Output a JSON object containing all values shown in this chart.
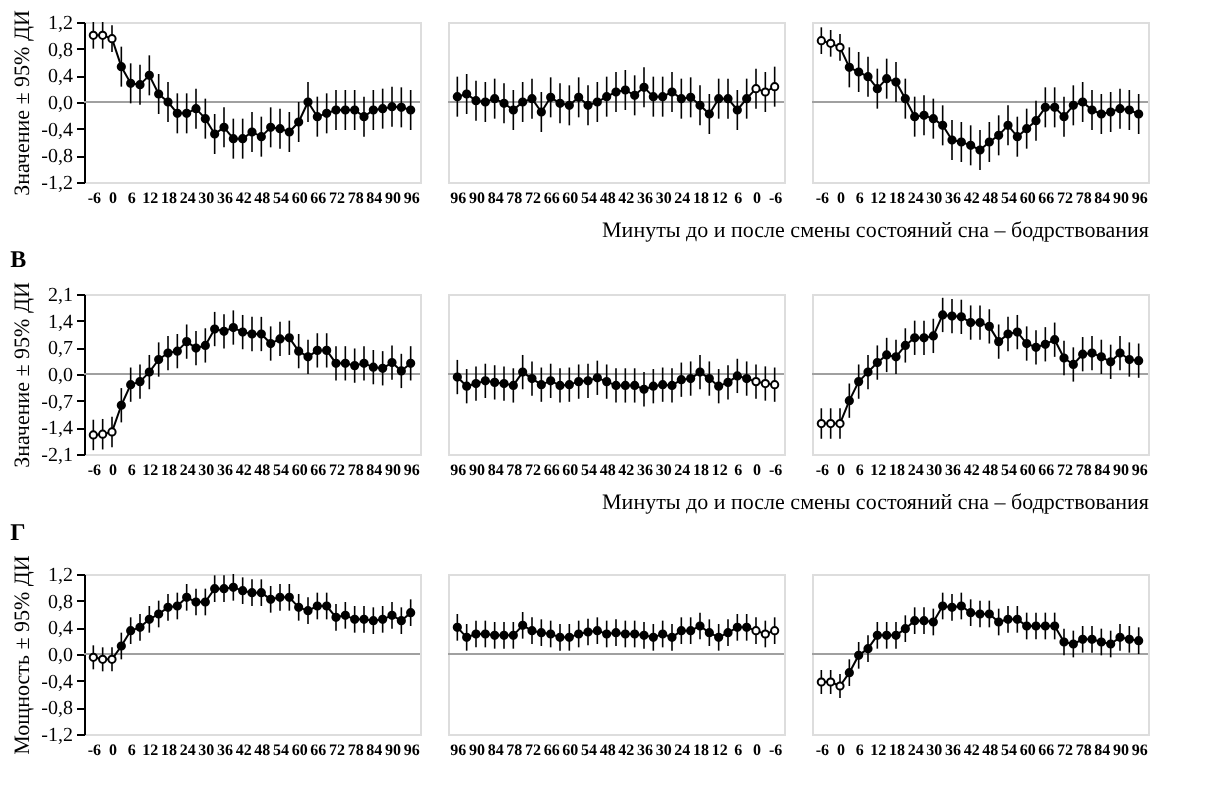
{
  "chart_data": [
    {
      "type": "line",
      "ylabel": "Значение ± 95% ДИ",
      "marker": "circle",
      "line_style": "solid",
      "xlim": [
        -9,
        99
      ],
      "xticks": [
        -6,
        0,
        6,
        12,
        18,
        24,
        30,
        36,
        42,
        48,
        54,
        60,
        66,
        72,
        78,
        84,
        90,
        96
      ],
      "ylim": [
        -1.2,
        1.2
      ],
      "yticks": [
        {
          "value": -1.2,
          "label": "-1,2"
        },
        {
          "value": -0.8,
          "label": "-0,8"
        },
        {
          "value": -0.4,
          "label": "-0,4"
        },
        {
          "value": 0,
          "label": "0,0"
        },
        {
          "value": 0.4,
          "label": "0,4"
        },
        {
          "value": 0.8,
          "label": "0,8"
        },
        {
          "value": 1.2,
          "label": "1,2"
        }
      ],
      "ref_lines": [
        {
          "axis": "y",
          "value": 0,
          "color": "#a0a0a0"
        }
      ],
      "series": [
        {
          "colors": [
            "#ffffff",
            "#ffffff",
            "#ffffff",
            "#000000",
            "#000000",
            "#000000",
            "#000000",
            "#000000",
            "#000000",
            "#000000",
            "#000000",
            "#000000",
            "#000000",
            "#000000",
            "#000000",
            "#000000",
            "#000000",
            "#000000",
            "#000000",
            "#000000",
            "#000000",
            "#000000",
            "#000000",
            "#000000",
            "#000000",
            "#000000",
            "#000000",
            "#000000",
            "#000000",
            "#000000",
            "#000000",
            "#000000",
            "#000000",
            "#000000",
            "#000000"
          ],
          "x": [
            -6,
            -3,
            0,
            3,
            6,
            9,
            12,
            15,
            18,
            21,
            24,
            27,
            30,
            33,
            36,
            39,
            42,
            45,
            48,
            51,
            54,
            57,
            60,
            63,
            66,
            69,
            72,
            75,
            78,
            81,
            84,
            87,
            90,
            93,
            96
          ],
          "values": [
            1.0,
            1.0,
            0.95,
            0.53,
            0.28,
            0.26,
            0.4,
            0.12,
            0.0,
            -0.17,
            -0.17,
            -0.1,
            -0.25,
            -0.48,
            -0.38,
            -0.55,
            -0.55,
            -0.45,
            -0.52,
            -0.38,
            -0.4,
            -0.45,
            -0.3,
            0.0,
            -0.22,
            -0.17,
            -0.12,
            -0.12,
            -0.12,
            -0.22,
            -0.12,
            -0.1,
            -0.07,
            -0.08,
            -0.12
          ],
          "errors": [
            0.2,
            0.2,
            0.2,
            0.3,
            0.3,
            0.3,
            0.3,
            0.3,
            0.3,
            0.3,
            0.3,
            0.3,
            0.3,
            0.3,
            0.3,
            0.3,
            0.3,
            0.3,
            0.3,
            0.3,
            0.3,
            0.3,
            0.3,
            0.3,
            0.3,
            0.3,
            0.3,
            0.3,
            0.3,
            0.3,
            0.3,
            0.3,
            0.3,
            0.3,
            0.3
          ]
        }
      ]
    },
    {
      "type": "line",
      "tick_labels": "x",
      "marker": "circle",
      "line_style": "solid",
      "xlim": [
        99,
        -9
      ],
      "xticks": [
        96,
        90,
        84,
        78,
        72,
        66,
        60,
        54,
        48,
        42,
        36,
        30,
        24,
        18,
        12,
        6,
        0,
        -6
      ],
      "ylim": [
        -1.2,
        1.2
      ],
      "ref_lines": [
        {
          "axis": "y",
          "value": 0,
          "color": "#a0a0a0"
        }
      ],
      "series": [
        {
          "colors": [
            "#000000",
            "#000000",
            "#000000",
            "#000000",
            "#000000",
            "#000000",
            "#000000",
            "#000000",
            "#000000",
            "#000000",
            "#000000",
            "#000000",
            "#000000",
            "#000000",
            "#000000",
            "#000000",
            "#000000",
            "#000000",
            "#000000",
            "#000000",
            "#000000",
            "#000000",
            "#000000",
            "#000000",
            "#000000",
            "#000000",
            "#000000",
            "#000000",
            "#000000",
            "#000000",
            "#000000",
            "#000000",
            "#ffffff",
            "#ffffff",
            "#ffffff"
          ],
          "x": [
            96,
            93,
            90,
            87,
            84,
            81,
            78,
            75,
            72,
            69,
            66,
            63,
            60,
            57,
            54,
            51,
            48,
            45,
            42,
            39,
            36,
            33,
            30,
            27,
            24,
            21,
            18,
            15,
            12,
            9,
            6,
            3,
            0,
            -3,
            -6
          ],
          "values": [
            0.08,
            0.12,
            0.02,
            0.0,
            0.05,
            -0.02,
            -0.12,
            0.0,
            0.05,
            -0.15,
            0.07,
            -0.02,
            -0.05,
            0.07,
            -0.05,
            0.0,
            0.08,
            0.15,
            0.18,
            0.1,
            0.22,
            0.08,
            0.08,
            0.15,
            0.05,
            0.07,
            -0.05,
            -0.18,
            0.05,
            0.05,
            -0.12,
            0.05,
            0.2,
            0.15,
            0.23
          ],
          "errors": [
            0.3,
            0.3,
            0.3,
            0.3,
            0.3,
            0.3,
            0.3,
            0.3,
            0.3,
            0.3,
            0.3,
            0.3,
            0.3,
            0.3,
            0.3,
            0.3,
            0.3,
            0.3,
            0.3,
            0.3,
            0.3,
            0.3,
            0.3,
            0.3,
            0.3,
            0.3,
            0.3,
            0.3,
            0.3,
            0.3,
            0.3,
            0.3,
            0.3,
            0.3,
            0.3
          ]
        }
      ]
    },
    {
      "type": "line",
      "tick_labels": "x",
      "xlabel": "Минуты до и после смены состояний сна – бодрствования",
      "marker": "circle",
      "line_style": "solid",
      "xlim": [
        -9,
        99
      ],
      "xticks": [
        -6,
        0,
        6,
        12,
        18,
        24,
        30,
        36,
        42,
        48,
        54,
        60,
        66,
        72,
        78,
        84,
        90,
        96
      ],
      "ylim": [
        -1.2,
        1.2
      ],
      "ref_lines": [
        {
          "axis": "y",
          "value": 0,
          "color": "#a0a0a0"
        }
      ],
      "series": [
        {
          "colors": [
            "#ffffff",
            "#ffffff",
            "#ffffff",
            "#000000",
            "#000000",
            "#000000",
            "#000000",
            "#000000",
            "#000000",
            "#000000",
            "#000000",
            "#000000",
            "#000000",
            "#000000",
            "#000000",
            "#000000",
            "#000000",
            "#000000",
            "#000000",
            "#000000",
            "#000000",
            "#000000",
            "#000000",
            "#000000",
            "#000000",
            "#000000",
            "#000000",
            "#000000",
            "#000000",
            "#000000",
            "#000000",
            "#000000",
            "#000000",
            "#000000",
            "#000000"
          ],
          "x": [
            -6,
            -3,
            0,
            3,
            6,
            9,
            12,
            15,
            18,
            21,
            24,
            27,
            30,
            33,
            36,
            39,
            42,
            45,
            48,
            51,
            54,
            57,
            60,
            63,
            66,
            69,
            72,
            75,
            78,
            81,
            84,
            87,
            90,
            93,
            96
          ],
          "values": [
            0.92,
            0.88,
            0.82,
            0.52,
            0.45,
            0.38,
            0.2,
            0.35,
            0.3,
            0.05,
            -0.22,
            -0.2,
            -0.25,
            -0.35,
            -0.57,
            -0.6,
            -0.65,
            -0.72,
            -0.6,
            -0.5,
            -0.35,
            -0.52,
            -0.4,
            -0.28,
            -0.08,
            -0.08,
            -0.22,
            -0.05,
            0.0,
            -0.12,
            -0.18,
            -0.15,
            -0.1,
            -0.12,
            -0.18
          ],
          "errors": [
            0.2,
            0.2,
            0.2,
            0.3,
            0.3,
            0.3,
            0.3,
            0.3,
            0.3,
            0.3,
            0.3,
            0.3,
            0.3,
            0.3,
            0.3,
            0.3,
            0.3,
            0.3,
            0.3,
            0.3,
            0.3,
            0.3,
            0.3,
            0.3,
            0.3,
            0.3,
            0.3,
            0.3,
            0.3,
            0.3,
            0.3,
            0.3,
            0.3,
            0.3,
            0.3
          ]
        }
      ]
    },
    {
      "type": "line",
      "title": "В",
      "ylabel": "Значение ± 95% ДИ",
      "marker": "circle",
      "line_style": "solid",
      "xlim": [
        -9,
        99
      ],
      "xticks": [
        -6,
        0,
        6,
        12,
        18,
        24,
        30,
        36,
        42,
        48,
        54,
        60,
        66,
        72,
        78,
        84,
        90,
        96
      ],
      "ylim": [
        -2.1,
        2.1
      ],
      "yticks": [
        {
          "value": -2.1,
          "label": "-2,1"
        },
        {
          "value": -1.4,
          "label": "-1,4"
        },
        {
          "value": -0.7,
          "label": "-0,7"
        },
        {
          "value": 0,
          "label": "0,0"
        },
        {
          "value": 0.7,
          "label": "0,7"
        },
        {
          "value": 1.4,
          "label": "1,4"
        },
        {
          "value": 2.1,
          "label": "2,1"
        }
      ],
      "ref_lines": [
        {
          "axis": "y",
          "value": 0,
          "color": "#a0a0a0"
        }
      ],
      "series": [
        {
          "colors": [
            "#ffffff",
            "#ffffff",
            "#ffffff",
            "#000000",
            "#000000",
            "#000000",
            "#000000",
            "#000000",
            "#000000",
            "#000000",
            "#000000",
            "#000000",
            "#000000",
            "#000000",
            "#000000",
            "#000000",
            "#000000",
            "#000000",
            "#000000",
            "#000000",
            "#000000",
            "#000000",
            "#000000",
            "#000000",
            "#000000",
            "#000000",
            "#000000",
            "#000000",
            "#000000",
            "#000000",
            "#000000",
            "#000000",
            "#000000",
            "#000000",
            "#000000"
          ],
          "x": [
            -6,
            -3,
            0,
            3,
            6,
            9,
            12,
            15,
            18,
            21,
            24,
            27,
            30,
            33,
            36,
            39,
            42,
            45,
            48,
            51,
            54,
            57,
            60,
            63,
            66,
            69,
            72,
            75,
            78,
            81,
            84,
            87,
            90,
            93,
            96
          ],
          "values": [
            -1.6,
            -1.58,
            -1.52,
            -0.82,
            -0.28,
            -0.2,
            0.05,
            0.38,
            0.55,
            0.6,
            0.85,
            0.68,
            0.75,
            1.18,
            1.12,
            1.22,
            1.1,
            1.05,
            1.05,
            0.8,
            0.92,
            0.95,
            0.6,
            0.45,
            0.62,
            0.62,
            0.28,
            0.28,
            0.22,
            0.28,
            0.18,
            0.15,
            0.3,
            0.08,
            0.28
          ],
          "errors": [
            0.4,
            0.4,
            0.4,
            0.45,
            0.45,
            0.45,
            0.45,
            0.45,
            0.45,
            0.45,
            0.45,
            0.45,
            0.45,
            0.45,
            0.45,
            0.45,
            0.45,
            0.45,
            0.45,
            0.45,
            0.45,
            0.45,
            0.45,
            0.45,
            0.45,
            0.45,
            0.45,
            0.45,
            0.45,
            0.45,
            0.45,
            0.45,
            0.45,
            0.45,
            0.45
          ]
        }
      ]
    },
    {
      "type": "line",
      "tick_labels": "x",
      "marker": "circle",
      "line_style": "solid",
      "xlim": [
        99,
        -9
      ],
      "xticks": [
        96,
        90,
        84,
        78,
        72,
        66,
        60,
        54,
        48,
        42,
        36,
        30,
        24,
        18,
        12,
        6,
        0,
        -6
      ],
      "ylim": [
        -2.1,
        2.1
      ],
      "ref_lines": [
        {
          "axis": "y",
          "value": 0,
          "color": "#a0a0a0"
        }
      ],
      "series": [
        {
          "colors": [
            "#000000",
            "#000000",
            "#000000",
            "#000000",
            "#000000",
            "#000000",
            "#000000",
            "#000000",
            "#000000",
            "#000000",
            "#000000",
            "#000000",
            "#000000",
            "#000000",
            "#000000",
            "#000000",
            "#000000",
            "#000000",
            "#000000",
            "#000000",
            "#000000",
            "#000000",
            "#000000",
            "#000000",
            "#000000",
            "#000000",
            "#000000",
            "#000000",
            "#000000",
            "#000000",
            "#000000",
            "#000000",
            "#ffffff",
            "#ffffff",
            "#ffffff"
          ],
          "x": [
            96,
            93,
            90,
            87,
            84,
            81,
            78,
            75,
            72,
            69,
            66,
            63,
            60,
            57,
            54,
            51,
            48,
            45,
            42,
            39,
            36,
            33,
            30,
            27,
            24,
            21,
            18,
            15,
            12,
            9,
            6,
            3,
            0,
            -3,
            -6
          ],
          "values": [
            -0.08,
            -0.32,
            -0.25,
            -0.18,
            -0.22,
            -0.25,
            -0.3,
            0.05,
            -0.12,
            -0.28,
            -0.18,
            -0.3,
            -0.28,
            -0.2,
            -0.18,
            -0.1,
            -0.2,
            -0.3,
            -0.3,
            -0.3,
            -0.4,
            -0.32,
            -0.28,
            -0.3,
            -0.15,
            -0.12,
            0.05,
            -0.12,
            -0.32,
            -0.22,
            -0.05,
            -0.12,
            -0.2,
            -0.25,
            -0.28
          ],
          "errors": [
            0.45,
            0.45,
            0.45,
            0.45,
            0.45,
            0.45,
            0.45,
            0.45,
            0.45,
            0.45,
            0.45,
            0.45,
            0.45,
            0.45,
            0.45,
            0.45,
            0.45,
            0.45,
            0.45,
            0.45,
            0.45,
            0.45,
            0.45,
            0.45,
            0.45,
            0.45,
            0.45,
            0.45,
            0.45,
            0.45,
            0.45,
            0.45,
            0.45,
            0.45,
            0.45
          ]
        }
      ]
    },
    {
      "type": "line",
      "tick_labels": "x",
      "xlabel": "Минуты до и после смены состояний сна – бодрствования",
      "marker": "circle",
      "line_style": "solid",
      "xlim": [
        -9,
        99
      ],
      "xticks": [
        -6,
        0,
        6,
        12,
        18,
        24,
        30,
        36,
        42,
        48,
        54,
        60,
        66,
        72,
        78,
        84,
        90,
        96
      ],
      "ylim": [
        -2.1,
        2.1
      ],
      "ref_lines": [
        {
          "axis": "y",
          "value": 0,
          "color": "#a0a0a0"
        }
      ],
      "series": [
        {
          "colors": [
            "#ffffff",
            "#ffffff",
            "#ffffff",
            "#000000",
            "#000000",
            "#000000",
            "#000000",
            "#000000",
            "#000000",
            "#000000",
            "#000000",
            "#000000",
            "#000000",
            "#000000",
            "#000000",
            "#000000",
            "#000000",
            "#000000",
            "#000000",
            "#000000",
            "#000000",
            "#000000",
            "#000000",
            "#000000",
            "#000000",
            "#000000",
            "#000000",
            "#000000",
            "#000000",
            "#000000",
            "#000000",
            "#000000",
            "#000000",
            "#000000",
            "#000000"
          ],
          "x": [
            -6,
            -3,
            0,
            3,
            6,
            9,
            12,
            15,
            18,
            21,
            24,
            27,
            30,
            33,
            36,
            39,
            42,
            45,
            48,
            51,
            54,
            57,
            60,
            63,
            66,
            69,
            72,
            75,
            78,
            81,
            84,
            87,
            90,
            93,
            96
          ],
          "values": [
            -1.3,
            -1.3,
            -1.3,
            -0.7,
            -0.2,
            0.05,
            0.3,
            0.5,
            0.45,
            0.75,
            0.95,
            0.95,
            1.0,
            1.55,
            1.52,
            1.5,
            1.35,
            1.35,
            1.25,
            0.85,
            1.05,
            1.1,
            0.8,
            0.7,
            0.78,
            0.9,
            0.42,
            0.25,
            0.52,
            0.55,
            0.45,
            0.32,
            0.55,
            0.38,
            0.35
          ],
          "errors": [
            0.4,
            0.4,
            0.4,
            0.45,
            0.45,
            0.45,
            0.45,
            0.45,
            0.45,
            0.45,
            0.45,
            0.45,
            0.45,
            0.45,
            0.45,
            0.45,
            0.45,
            0.45,
            0.45,
            0.45,
            0.45,
            0.45,
            0.45,
            0.45,
            0.45,
            0.45,
            0.45,
            0.45,
            0.45,
            0.45,
            0.45,
            0.45,
            0.45,
            0.45,
            0.45
          ]
        }
      ]
    },
    {
      "type": "line",
      "title": "Г",
      "ylabel": "Мощность ± 95% ДИ",
      "marker": "circle",
      "line_style": "solid",
      "xlim": [
        -9,
        99
      ],
      "xticks": [
        -6,
        0,
        6,
        12,
        18,
        24,
        30,
        36,
        42,
        48,
        54,
        60,
        66,
        72,
        78,
        84,
        90,
        96
      ],
      "ylim": [
        -1.2,
        1.2
      ],
      "yticks": [
        {
          "value": -1.2,
          "label": "-1,2"
        },
        {
          "value": -0.8,
          "label": "-0,8"
        },
        {
          "value": -0.4,
          "label": "-0,4"
        },
        {
          "value": 0,
          "label": "0,0"
        },
        {
          "value": 0.4,
          "label": "0,4"
        },
        {
          "value": 0.8,
          "label": "0,8"
        },
        {
          "value": 1.2,
          "label": "1,2"
        }
      ],
      "ref_lines": [
        {
          "axis": "y",
          "value": 0,
          "color": "#a0a0a0"
        }
      ],
      "series": [
        {
          "colors": [
            "#ffffff",
            "#ffffff",
            "#ffffff",
            "#000000",
            "#000000",
            "#000000",
            "#000000",
            "#000000",
            "#000000",
            "#000000",
            "#000000",
            "#000000",
            "#000000",
            "#000000",
            "#000000",
            "#000000",
            "#000000",
            "#000000",
            "#000000",
            "#000000",
            "#000000",
            "#000000",
            "#000000",
            "#000000",
            "#000000",
            "#000000",
            "#000000",
            "#000000",
            "#000000",
            "#000000",
            "#000000",
            "#000000",
            "#000000",
            "#000000",
            "#000000"
          ],
          "x": [
            -6,
            -3,
            0,
            3,
            6,
            9,
            12,
            15,
            18,
            21,
            24,
            27,
            30,
            33,
            36,
            39,
            42,
            45,
            48,
            51,
            54,
            57,
            60,
            63,
            66,
            69,
            72,
            75,
            78,
            81,
            84,
            87,
            90,
            93,
            96
          ],
          "values": [
            -0.05,
            -0.08,
            -0.08,
            0.12,
            0.35,
            0.4,
            0.52,
            0.6,
            0.7,
            0.72,
            0.85,
            0.78,
            0.78,
            0.98,
            0.98,
            1.0,
            0.95,
            0.92,
            0.92,
            0.82,
            0.85,
            0.85,
            0.7,
            0.65,
            0.72,
            0.72,
            0.55,
            0.58,
            0.52,
            0.52,
            0.5,
            0.52,
            0.58,
            0.5,
            0.62
          ],
          "errors": [
            0.18,
            0.18,
            0.18,
            0.2,
            0.2,
            0.2,
            0.2,
            0.2,
            0.2,
            0.2,
            0.2,
            0.2,
            0.2,
            0.2,
            0.2,
            0.2,
            0.2,
            0.2,
            0.2,
            0.2,
            0.2,
            0.2,
            0.2,
            0.2,
            0.2,
            0.2,
            0.2,
            0.2,
            0.2,
            0.2,
            0.2,
            0.2,
            0.2,
            0.2,
            0.2
          ]
        }
      ]
    },
    {
      "type": "line",
      "tick_labels": "x",
      "marker": "circle",
      "line_style": "solid",
      "xlim": [
        99,
        -9
      ],
      "xticks": [
        96,
        90,
        84,
        78,
        72,
        66,
        60,
        54,
        48,
        42,
        36,
        30,
        24,
        18,
        12,
        6,
        0,
        -6
      ],
      "ylim": [
        -1.2,
        1.2
      ],
      "ref_lines": [
        {
          "axis": "y",
          "value": 0,
          "color": "#a0a0a0"
        }
      ],
      "series": [
        {
          "colors": [
            "#000000",
            "#000000",
            "#000000",
            "#000000",
            "#000000",
            "#000000",
            "#000000",
            "#000000",
            "#000000",
            "#000000",
            "#000000",
            "#000000",
            "#000000",
            "#000000",
            "#000000",
            "#000000",
            "#000000",
            "#000000",
            "#000000",
            "#000000",
            "#000000",
            "#000000",
            "#000000",
            "#000000",
            "#000000",
            "#000000",
            "#000000",
            "#000000",
            "#000000",
            "#000000",
            "#000000",
            "#000000",
            "#ffffff",
            "#ffffff",
            "#ffffff"
          ],
          "x": [
            96,
            93,
            90,
            87,
            84,
            81,
            78,
            75,
            72,
            69,
            66,
            63,
            60,
            57,
            54,
            51,
            48,
            45,
            42,
            39,
            36,
            33,
            30,
            27,
            24,
            21,
            18,
            15,
            12,
            9,
            6,
            3,
            0,
            -3,
            -6
          ],
          "values": [
            0.4,
            0.25,
            0.3,
            0.3,
            0.28,
            0.28,
            0.28,
            0.43,
            0.35,
            0.32,
            0.3,
            0.25,
            0.25,
            0.3,
            0.33,
            0.35,
            0.3,
            0.32,
            0.3,
            0.3,
            0.28,
            0.25,
            0.3,
            0.25,
            0.35,
            0.35,
            0.42,
            0.32,
            0.25,
            0.32,
            0.4,
            0.4,
            0.35,
            0.3,
            0.35
          ],
          "errors": [
            0.2,
            0.2,
            0.2,
            0.2,
            0.2,
            0.2,
            0.2,
            0.2,
            0.2,
            0.2,
            0.2,
            0.2,
            0.2,
            0.2,
            0.2,
            0.2,
            0.2,
            0.2,
            0.2,
            0.2,
            0.2,
            0.2,
            0.2,
            0.2,
            0.2,
            0.2,
            0.2,
            0.2,
            0.2,
            0.2,
            0.2,
            0.2,
            0.2,
            0.2,
            0.2
          ]
        }
      ]
    },
    {
      "type": "line",
      "tick_labels": "x",
      "marker": "circle",
      "line_style": "solid",
      "xlim": [
        -9,
        99
      ],
      "xticks": [
        -6,
        0,
        6,
        12,
        18,
        24,
        30,
        36,
        42,
        48,
        54,
        60,
        66,
        72,
        78,
        84,
        90,
        96
      ],
      "ylim": [
        -1.2,
        1.2
      ],
      "ref_lines": [
        {
          "axis": "y",
          "value": 0,
          "color": "#a0a0a0"
        }
      ],
      "series": [
        {
          "colors": [
            "#ffffff",
            "#ffffff",
            "#ffffff",
            "#000000",
            "#000000",
            "#000000",
            "#000000",
            "#000000",
            "#000000",
            "#000000",
            "#000000",
            "#000000",
            "#000000",
            "#000000",
            "#000000",
            "#000000",
            "#000000",
            "#000000",
            "#000000",
            "#000000",
            "#000000",
            "#000000",
            "#000000",
            "#000000",
            "#000000",
            "#000000",
            "#000000",
            "#000000",
            "#000000",
            "#000000",
            "#000000",
            "#000000",
            "#000000",
            "#000000",
            "#000000"
          ],
          "x": [
            -6,
            -3,
            0,
            3,
            6,
            9,
            12,
            15,
            18,
            21,
            24,
            27,
            30,
            33,
            36,
            39,
            42,
            45,
            48,
            51,
            54,
            57,
            60,
            63,
            66,
            69,
            72,
            75,
            78,
            81,
            84,
            87,
            90,
            93,
            96
          ],
          "values": [
            -0.42,
            -0.42,
            -0.48,
            -0.28,
            -0.02,
            0.08,
            0.28,
            0.28,
            0.28,
            0.38,
            0.5,
            0.5,
            0.48,
            0.72,
            0.7,
            0.72,
            0.62,
            0.6,
            0.6,
            0.48,
            0.52,
            0.52,
            0.42,
            0.42,
            0.42,
            0.42,
            0.18,
            0.15,
            0.22,
            0.22,
            0.18,
            0.15,
            0.25,
            0.22,
            0.2
          ],
          "errors": [
            0.18,
            0.18,
            0.18,
            0.2,
            0.2,
            0.2,
            0.2,
            0.2,
            0.2,
            0.2,
            0.2,
            0.2,
            0.2,
            0.2,
            0.2,
            0.2,
            0.2,
            0.2,
            0.2,
            0.2,
            0.2,
            0.2,
            0.2,
            0.2,
            0.2,
            0.2,
            0.2,
            0.2,
            0.2,
            0.2,
            0.2,
            0.2,
            0.2,
            0.2,
            0.2
          ]
        }
      ]
    }
  ]
}
